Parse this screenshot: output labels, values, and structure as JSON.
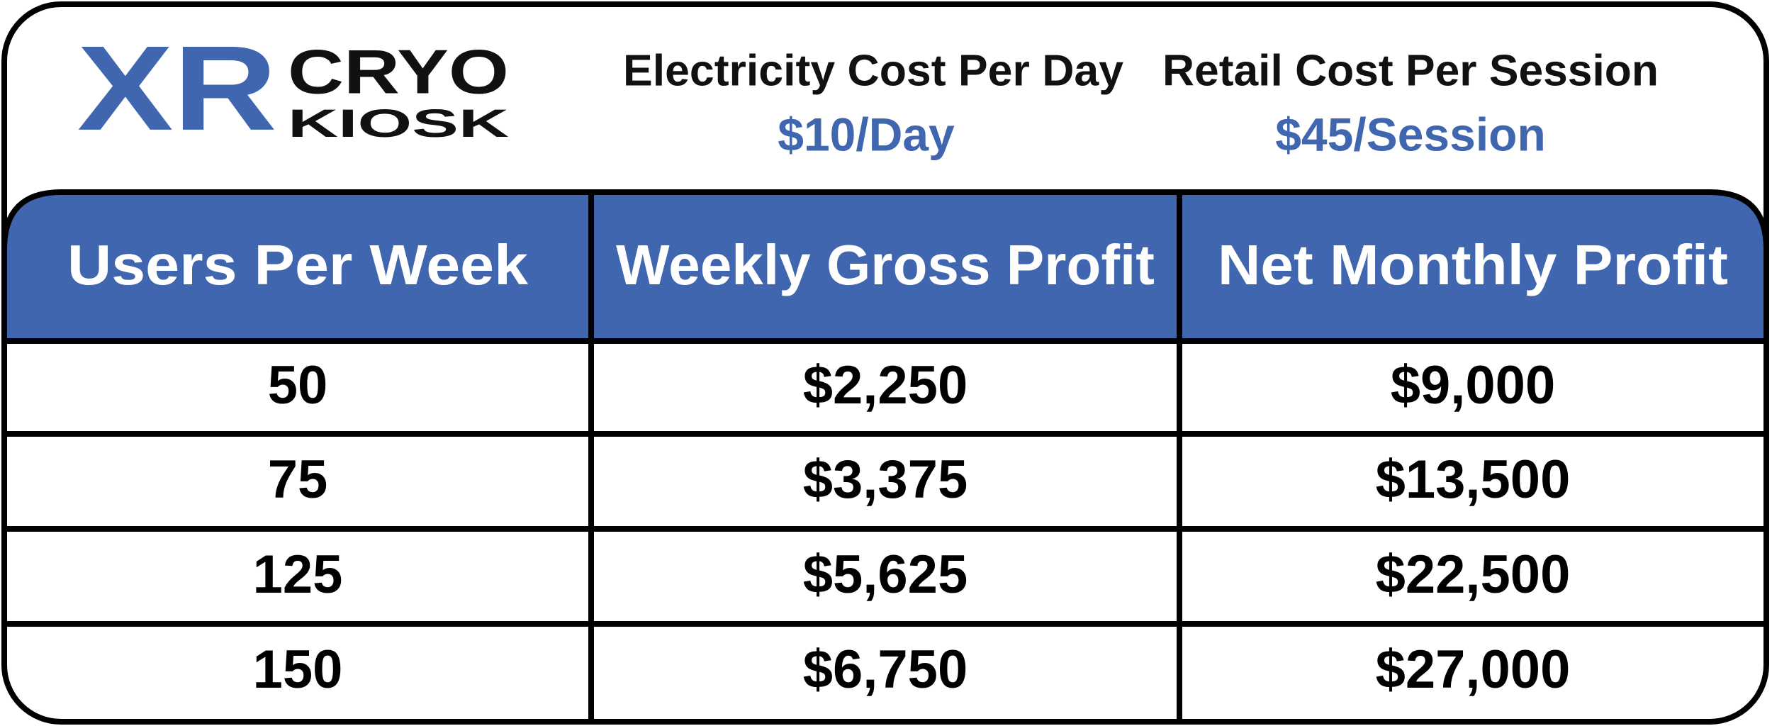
{
  "logo": {
    "mark": "XR",
    "line1": "CRYO",
    "line2": "KIOSK"
  },
  "costs": [
    {
      "label": "Electricity Cost Per Day",
      "value": "$10/Day"
    },
    {
      "label": "Retail Cost Per Session",
      "value": "$45/Session"
    }
  ],
  "table": {
    "header": [
      "Users Per Week",
      "Weekly Gross Profit",
      "Net Monthly Profit"
    ],
    "rows": [
      [
        "50",
        "$2,250",
        "$9,000"
      ],
      [
        "75",
        "$3,375",
        "$13,500"
      ],
      [
        "125",
        "$5,625",
        "$22,500"
      ],
      [
        "150",
        "$6,750",
        "$27,000"
      ]
    ]
  }
}
